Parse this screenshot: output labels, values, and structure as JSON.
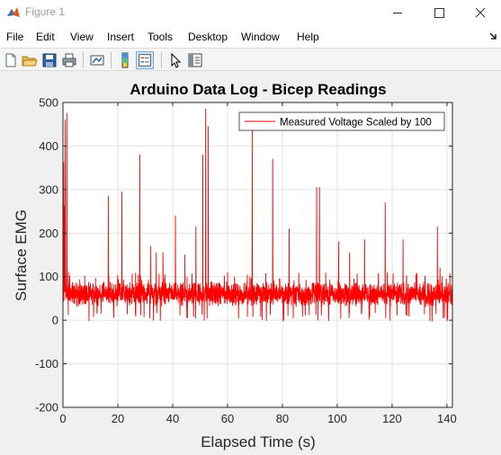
{
  "window": {
    "title": "Figure 1",
    "icon": "matlab-icon",
    "controls": [
      "minimize-icon",
      "maximize-icon",
      "close-icon"
    ]
  },
  "menubar": {
    "items": [
      "File",
      "Edit",
      "View",
      "Insert",
      "Tools",
      "Desktop",
      "Window",
      "Help"
    ]
  },
  "toolbar": {
    "buttons": [
      "new-figure-icon",
      "open-file-icon",
      "save-icon",
      "print-icon",
      "link-plot-icon",
      "colorbar-icon",
      "legend-icon",
      "edit-plot-icon",
      "property-inspector-icon"
    ]
  },
  "colors": {
    "series": "#ff0000",
    "axes_bg": "#ffffff",
    "figure_bg": "#f0f0f0",
    "grid": "#e3e3e3"
  },
  "chart_data": {
    "type": "line",
    "title": "Arduino Data Log - Bicep Readings",
    "xlabel": "Elapsed Time (s)",
    "ylabel": "Surface EMG",
    "xlim": [
      0,
      142
    ],
    "ylim": [
      -200,
      500
    ],
    "xticks": [
      0,
      20,
      40,
      60,
      80,
      100,
      120,
      140
    ],
    "yticks": [
      -200,
      -100,
      0,
      100,
      200,
      300,
      400,
      500
    ],
    "grid": true,
    "legend_position": "top-right",
    "series": [
      {
        "name": "Measured Voltage Scaled by 100",
        "baseline": 58,
        "noise_band": [
          30,
          90
        ],
        "spikes": [
          {
            "x": 0.8,
            "y": 460
          },
          {
            "x": 1.4,
            "y": 475
          },
          {
            "x": 2.0,
            "y": 110
          },
          {
            "x": 16.5,
            "y": 285
          },
          {
            "x": 21.5,
            "y": 295
          },
          {
            "x": 28.0,
            "y": 380
          },
          {
            "x": 32.0,
            "y": 170
          },
          {
            "x": 34.0,
            "y": 155
          },
          {
            "x": 36.5,
            "y": 155
          },
          {
            "x": 41.0,
            "y": 240
          },
          {
            "x": 44.5,
            "y": 150
          },
          {
            "x": 48.5,
            "y": 215
          },
          {
            "x": 51.0,
            "y": 380
          },
          {
            "x": 52.0,
            "y": 485
          },
          {
            "x": 53.0,
            "y": 445
          },
          {
            "x": 69.0,
            "y": 440
          },
          {
            "x": 76.5,
            "y": 370
          },
          {
            "x": 82.5,
            "y": 210
          },
          {
            "x": 92.5,
            "y": 305
          },
          {
            "x": 93.5,
            "y": 305
          },
          {
            "x": 100.5,
            "y": 180
          },
          {
            "x": 104.5,
            "y": 155
          },
          {
            "x": 110.0,
            "y": 185
          },
          {
            "x": 117.5,
            "y": 270
          },
          {
            "x": 124.0,
            "y": 185
          },
          {
            "x": 136.5,
            "y": 215
          },
          {
            "x": 137.5,
            "y": 120
          }
        ],
        "dips": [
          {
            "x": 33.0,
            "y": 0
          },
          {
            "x": 35.5,
            "y": 0
          },
          {
            "x": 51.5,
            "y": 0
          },
          {
            "x": 93.0,
            "y": 0
          },
          {
            "x": 136.0,
            "y": 15
          }
        ]
      }
    ]
  }
}
